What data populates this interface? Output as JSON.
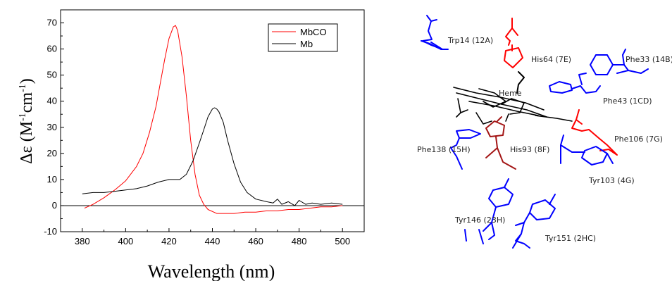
{
  "chart_data": {
    "type": "line",
    "xlabel": "Wavelength (nm)",
    "ylabel_main": "Δε (M",
    "ylabel_sup1": "-1",
    "ylabel_mid": "cm",
    "ylabel_sup2": "-1",
    "ylabel_end": ")",
    "xlim": [
      370,
      510
    ],
    "ylim": [
      -10,
      75
    ],
    "xticks": [
      380,
      400,
      420,
      440,
      460,
      480,
      500
    ],
    "yticks": [
      -10,
      0,
      10,
      20,
      30,
      40,
      50,
      60,
      70
    ],
    "legend_position": "top-right",
    "series": [
      {
        "name": "MbCO",
        "color": "#ff0000",
        "x": [
          381,
          385,
          390,
          395,
          400,
          405,
          408,
          411,
          414,
          416,
          418,
          420,
          422,
          423,
          424,
          426,
          428,
          430,
          432,
          434,
          436,
          438,
          442,
          446,
          450,
          455,
          460,
          465,
          470,
          475,
          480,
          485,
          490,
          495,
          500
        ],
        "y": [
          -1,
          0.5,
          3,
          6,
          9.5,
          15,
          20,
          28,
          38,
          47,
          56,
          64,
          68.5,
          69,
          67,
          57,
          42,
          25,
          12,
          4,
          0.5,
          -1.5,
          -3,
          -3,
          -3,
          -2.5,
          -2.5,
          -2,
          -2,
          -1.5,
          -1.5,
          -1,
          -0.5,
          -0.5,
          0
        ]
      },
      {
        "name": "Mb",
        "color": "#000000",
        "x": [
          380,
          385,
          390,
          395,
          400,
          405,
          410,
          415,
          420,
          425,
          428,
          431,
          434,
          436,
          438,
          440,
          441,
          442,
          443,
          445,
          447,
          450,
          453,
          456,
          460,
          465,
          468,
          470,
          472,
          475,
          478,
          480,
          483,
          486,
          490,
          495,
          500
        ],
        "y": [
          4.5,
          5,
          5,
          5.5,
          6,
          6.5,
          7.5,
          9,
          10,
          10,
          12,
          17,
          24,
          29,
          34,
          37,
          37.5,
          37,
          36,
          32,
          25,
          16,
          9,
          5,
          2.5,
          1.5,
          1,
          2.5,
          0.5,
          1.5,
          0,
          2,
          0.5,
          1,
          0.5,
          1,
          0.5
        ]
      }
    ]
  },
  "structure": {
    "labels": {
      "trp14": "Trp14 (12A)",
      "his64": "His64 (7E)",
      "phe33": "Phe33 (14B)",
      "heme": "Heme",
      "phe43": "Phe43 (1CD)",
      "phe106": "Phe106 (7G)",
      "phe138": "Phe138 (15H)",
      "his93": "His93 (8F)",
      "tyr103": "Tyr103 (4G)",
      "tyr146": "Tyr146 (23H)",
      "tyr151": "Tyr151 (2HC)"
    },
    "colors": {
      "blue": "#0000ff",
      "red": "#ff0000",
      "dark_red": "#a31515",
      "black": "#000000"
    }
  }
}
